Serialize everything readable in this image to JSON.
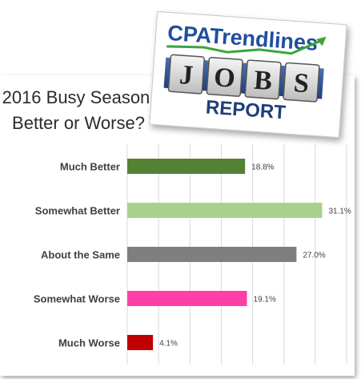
{
  "chart_data": {
    "type": "bar",
    "orientation": "horizontal",
    "title_lines": [
      "2016 Busy Season:",
      "Better or Worse?"
    ],
    "categories": [
      "Much Better",
      "Somewhat Better",
      "About the Same",
      "Somewhat Worse",
      "Much Worse"
    ],
    "values": [
      18.8,
      31.1,
      27.0,
      19.1,
      4.1
    ],
    "value_labels": [
      "18.8%",
      "31.1%",
      "27.0%",
      "19.1%",
      "4.1%"
    ],
    "colors": [
      "#548235",
      "#a9d18e",
      "#7f7f7f",
      "#ff3fa8",
      "#c00000"
    ],
    "xlim": [
      0,
      35
    ],
    "grid": true,
    "legend": "none"
  },
  "logo": {
    "brand_text": "CPATrendlines",
    "tiles": [
      "J",
      "O",
      "B",
      "S"
    ],
    "report_text": "REPORT"
  }
}
